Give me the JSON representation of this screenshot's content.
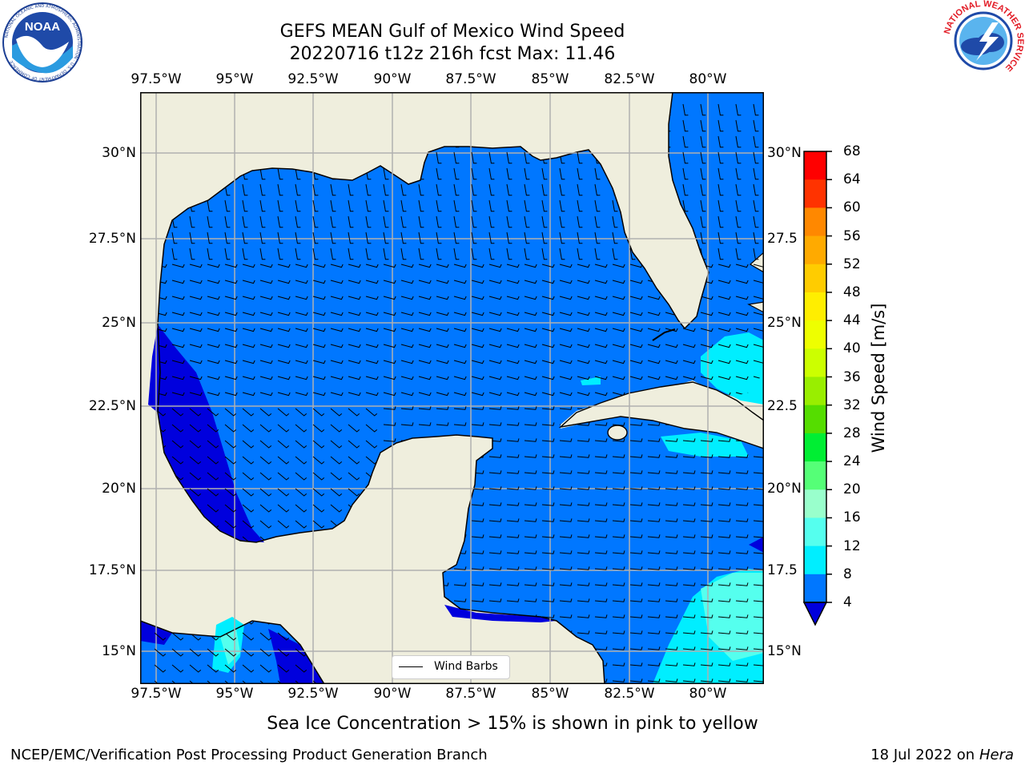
{
  "title_line1": "GEFS MEAN Gulf of Mexico Wind Speed",
  "title_line2": "20220716 t12z 216h fcst   Max: 11.46",
  "lon_labels": [
    "97.5°W",
    "95°W",
    "92.5°W",
    "90°W",
    "87.5°W",
    "85°W",
    "82.5°W",
    "80°W"
  ],
  "lat_labels_left": [
    "30°N",
    "27.5°N",
    "25°N",
    "22.5°N",
    "20°N",
    "17.5°N",
    "15°N"
  ],
  "lat_labels_right": [
    "30°N",
    "27.5",
    "25°N",
    "22.5",
    "20°N",
    "17.5",
    "15°N"
  ],
  "legend_label": "Wind Barbs",
  "colorbar": {
    "label": "Wind Speed [m/s]",
    "ticks": [
      "68",
      "64",
      "60",
      "56",
      "52",
      "48",
      "44",
      "40",
      "36",
      "32",
      "28",
      "24",
      "20",
      "16",
      "12",
      "8",
      "4"
    ],
    "colors": [
      "#ff0000",
      "#ff3300",
      "#ff6600",
      "#ff8800",
      "#ffaa00",
      "#ffcc00",
      "#ffee00",
      "#ffff00",
      "#eeff00",
      "#ccff00",
      "#99ee00",
      "#55dd00",
      "#00dd00",
      "#00ee33",
      "#55ff77",
      "#99ffcc",
      "#55ffee",
      "#00ffee",
      "#00eeff",
      "#0077ff"
    ],
    "under_color": "#0000dd"
  },
  "colors": {
    "land": "#efeedd",
    "sea_4_8": "#0077ff",
    "sea_below_4": "#0000dd",
    "sea_8_12": "#00eeff",
    "sea_12_16": "#55ffee"
  },
  "footer_note": "Sea Ice Concentration > 15% is shown in pink to yellow",
  "credit": "NCEP/EMC/Verification Post Processing Product Generation Branch",
  "date_prefix": "18 Jul 2022 on ",
  "date_host": "Hera",
  "logo_left": {
    "name": "NOAA",
    "ring_text": "NATIONAL OCEANIC AND ATMOSPHERIC ADMINISTRATION · U.S. DEPARTMENT OF COMMERCE"
  },
  "logo_right": {
    "ring_text": "NATIONAL WEATHER SERVICE"
  }
}
